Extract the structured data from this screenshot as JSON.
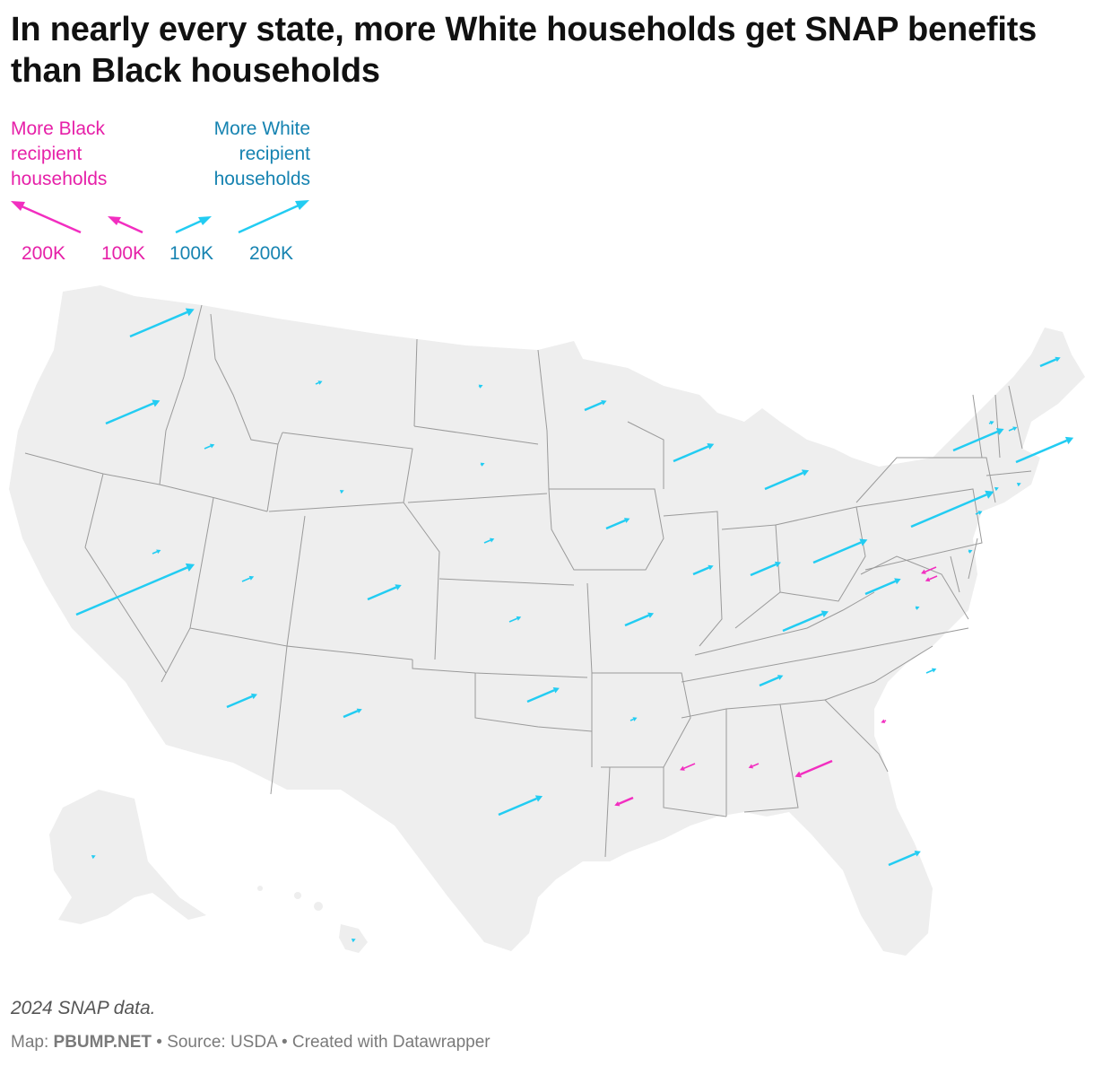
{
  "title": "In nearly every state, more White households get SNAP benefits than Black households",
  "legend": {
    "black_label": "More Black recipient households",
    "white_label": "More White recipient households",
    "keys": [
      {
        "label": "200K",
        "side": "black",
        "value": 200000
      },
      {
        "label": "100K",
        "side": "black",
        "value": 100000
      },
      {
        "label": "100K",
        "side": "white",
        "value": 100000
      },
      {
        "label": "200K",
        "side": "white",
        "value": 200000
      }
    ]
  },
  "colors": {
    "more_white": "#22ccf2",
    "more_black": "#f22ec0",
    "state_fill": "#eeeeee",
    "state_border": "#999999",
    "white_text": "#1683b1",
    "black_text": "#e620a8"
  },
  "note": "2024 SNAP data.",
  "footer": {
    "map_prefix": "Map:",
    "map_brand": "PBUMP.NET",
    "source": "• Source: USDA • Created with Datawrapper"
  },
  "arrows": [
    {
      "state": "WA",
      "dir": "white",
      "mag": 190
    },
    {
      "state": "OR",
      "dir": "white",
      "mag": 160
    },
    {
      "state": "CA",
      "dir": "white",
      "mag": 350
    },
    {
      "state": "ID",
      "dir": "white",
      "mag": 30
    },
    {
      "state": "NV",
      "dir": "white",
      "mag": 25
    },
    {
      "state": "MT",
      "dir": "white",
      "mag": 20
    },
    {
      "state": "WY",
      "dir": "white",
      "mag": 8
    },
    {
      "state": "UT",
      "dir": "white",
      "mag": 35
    },
    {
      "state": "AZ",
      "dir": "white",
      "mag": 90
    },
    {
      "state": "CO",
      "dir": "white",
      "mag": 100
    },
    {
      "state": "NM",
      "dir": "white",
      "mag": 55
    },
    {
      "state": "ND",
      "dir": "white",
      "mag": 12
    },
    {
      "state": "SD",
      "dir": "white",
      "mag": 12
    },
    {
      "state": "NE",
      "dir": "white",
      "mag": 30
    },
    {
      "state": "KS",
      "dir": "white",
      "mag": 35
    },
    {
      "state": "OK",
      "dir": "white",
      "mag": 95
    },
    {
      "state": "TX",
      "dir": "white",
      "mag": 130
    },
    {
      "state": "MN",
      "dir": "white",
      "mag": 65
    },
    {
      "state": "IA",
      "dir": "white",
      "mag": 70
    },
    {
      "state": "MO",
      "dir": "white",
      "mag": 85
    },
    {
      "state": "AR",
      "dir": "white",
      "mag": 20
    },
    {
      "state": "LA",
      "dir": "black",
      "mag": 55
    },
    {
      "state": "WI",
      "dir": "white",
      "mag": 120
    },
    {
      "state": "IL",
      "dir": "white",
      "mag": 60
    },
    {
      "state": "MI",
      "dir": "white",
      "mag": 130
    },
    {
      "state": "IN",
      "dir": "white",
      "mag": 90
    },
    {
      "state": "OH",
      "dir": "white",
      "mag": 160
    },
    {
      "state": "KY",
      "dir": "white",
      "mag": 135
    },
    {
      "state": "TN",
      "dir": "white",
      "mag": 70
    },
    {
      "state": "MS",
      "dir": "black",
      "mag": 45
    },
    {
      "state": "AL",
      "dir": "black",
      "mag": 30
    },
    {
      "state": "GA",
      "dir": "black",
      "mag": 110
    },
    {
      "state": "FL",
      "dir": "white",
      "mag": 95
    },
    {
      "state": "SC",
      "dir": "black",
      "mag": 15
    },
    {
      "state": "NC",
      "dir": "white",
      "mag": 30
    },
    {
      "state": "VA",
      "dir": "white",
      "mag": 12
    },
    {
      "state": "WV",
      "dir": "white",
      "mag": 105
    },
    {
      "state": "MD",
      "dir": "black",
      "mag": 45
    },
    {
      "state": "DC",
      "dir": "black",
      "mag": 35
    },
    {
      "state": "PA",
      "dir": "white",
      "mag": 245
    },
    {
      "state": "NY",
      "dir": "white",
      "mag": 150
    },
    {
      "state": "NJ",
      "dir": "white",
      "mag": 20
    },
    {
      "state": "DE",
      "dir": "white",
      "mag": 12
    },
    {
      "state": "CT",
      "dir": "white",
      "mag": 10
    },
    {
      "state": "RI",
      "dir": "white",
      "mag": 8
    },
    {
      "state": "MA",
      "dir": "white",
      "mag": 170
    },
    {
      "state": "VT",
      "dir": "white",
      "mag": 15
    },
    {
      "state": "NH",
      "dir": "white",
      "mag": 25
    },
    {
      "state": "ME",
      "dir": "white",
      "mag": 60
    },
    {
      "state": "AK",
      "dir": "white",
      "mag": 5
    },
    {
      "state": "HI",
      "dir": "white",
      "mag": 5
    }
  ]
}
